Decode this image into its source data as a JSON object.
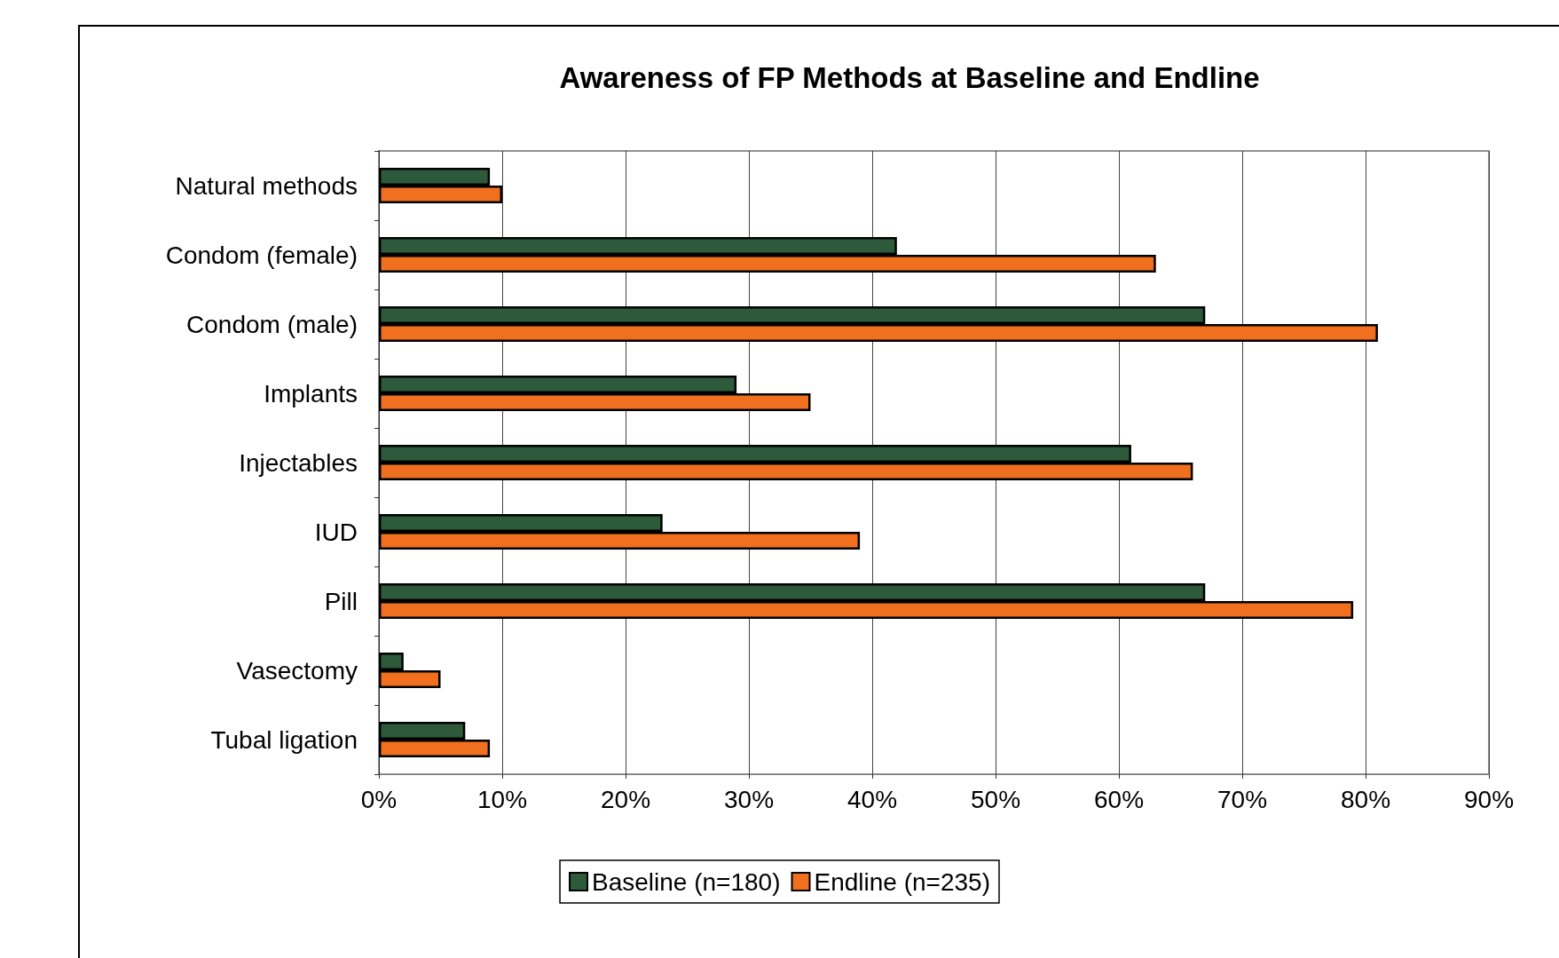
{
  "chart_data": {
    "type": "bar",
    "orientation": "horizontal",
    "title": "Awareness of FP Methods at Baseline and Endline",
    "categories": [
      "Natural methods",
      "Condom (female)",
      "Condom (male)",
      "Implants",
      "Injectables",
      "IUD",
      "Pill",
      "Vasectomy",
      "Tubal ligation"
    ],
    "series": [
      {
        "name": "Baseline (n=180)",
        "color": "#2d5a3a",
        "values": [
          9,
          42,
          67,
          29,
          61,
          23,
          67,
          2,
          7
        ]
      },
      {
        "name": "Endline (n=235)",
        "color": "#f07020",
        "values": [
          10,
          63,
          81,
          35,
          66,
          39,
          79,
          5,
          9
        ]
      }
    ],
    "xlim": [
      0,
      90
    ],
    "xticks": [
      {
        "value": 0,
        "label": "0%"
      },
      {
        "value": 10,
        "label": "10%"
      },
      {
        "value": 20,
        "label": "20%"
      },
      {
        "value": 30,
        "label": "30%"
      },
      {
        "value": 40,
        "label": "40%"
      },
      {
        "value": 50,
        "label": "50%"
      },
      {
        "value": 60,
        "label": "60%"
      },
      {
        "value": 70,
        "label": "70%"
      },
      {
        "value": 80,
        "label": "80%"
      },
      {
        "value": 90,
        "label": "90%"
      }
    ],
    "grid": "x",
    "legend": "bottom"
  }
}
